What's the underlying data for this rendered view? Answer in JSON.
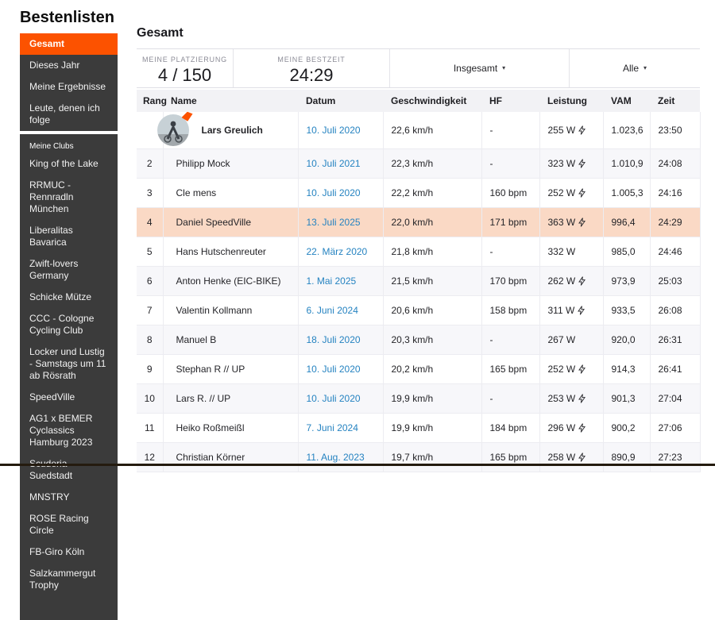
{
  "page_title": "Bestenlisten",
  "colors": {
    "accent_orange": "#fc5200",
    "sidebar_bg": "#3b3b3b",
    "link_blue": "#2583c1",
    "highlight_row": "#fad9c5",
    "zebra_row": "#f7f7fa",
    "header_row_bg": "#f2f2f5"
  },
  "sidebar": {
    "items": [
      {
        "label": "Gesamt",
        "active": true
      },
      {
        "label": "Dieses Jahr",
        "active": false
      },
      {
        "label": "Meine Ergebnisse",
        "active": false
      },
      {
        "label": "Leute, denen ich folge",
        "active": false
      }
    ],
    "clubs_header": "Meine Clubs",
    "clubs": [
      "King of the Lake",
      "RRMUC - Rennradln München",
      "Liberalitas Bavarica",
      "Zwift-lovers Germany",
      "Schicke Mütze",
      "CCC - Cologne Cycling Club",
      "Locker und Lustig - Samstags um 11 ab Rösrath",
      "SpeedVille",
      "AG1 x BEMER Cyclassics Hamburg 2023",
      "Scuderia Suedstadt",
      "MNSTRY",
      "ROSE Racing Circle",
      "FB-Giro Köln",
      "Salzkammergut Trophy"
    ]
  },
  "main": {
    "heading": "Gesamt",
    "stats": [
      {
        "label": "MEINE PLATZIERUNG",
        "value": "4 / 150"
      },
      {
        "label": "MEINE BESTZEIT",
        "value": "24:29"
      }
    ],
    "filters": [
      {
        "label": "Insgesamt",
        "caret": "▾"
      },
      {
        "label": "Alle",
        "caret": "▾"
      }
    ]
  },
  "table": {
    "columns": [
      "Rang",
      "Name",
      "Datum",
      "Geschwindigkeit",
      "HF",
      "Leistung",
      "VAM",
      "Zeit"
    ],
    "rows": [
      {
        "rank": "1",
        "has_avatar": true,
        "name": "Lars Greulich",
        "date": "10. Juli 2020",
        "speed": "22,6 km/h",
        "hf": "-",
        "power": "255 W",
        "power_meter": true,
        "vam": "1.023,6",
        "time": "23:50",
        "highlight": false
      },
      {
        "rank": "2",
        "has_avatar": false,
        "name": "Philipp Mock",
        "date": "10. Juli 2021",
        "speed": "22,3 km/h",
        "hf": "-",
        "power": "323 W",
        "power_meter": true,
        "vam": "1.010,9",
        "time": "24:08",
        "highlight": false
      },
      {
        "rank": "3",
        "has_avatar": false,
        "name": "Cle mens",
        "date": "10. Juli 2020",
        "speed": "22,2 km/h",
        "hf": "160 bpm",
        "power": "252 W",
        "power_meter": true,
        "vam": "1.005,3",
        "time": "24:16",
        "highlight": false
      },
      {
        "rank": "4",
        "has_avatar": false,
        "name": "Daniel SpeedVille",
        "date": "13. Juli 2025",
        "speed": "22,0 km/h",
        "hf": "171 bpm",
        "power": "363 W",
        "power_meter": true,
        "vam": "996,4",
        "time": "24:29",
        "highlight": true
      },
      {
        "rank": "5",
        "has_avatar": false,
        "name": "Hans Hutschenreuter",
        "date": "22. März 2020",
        "speed": "21,8 km/h",
        "hf": "-",
        "power": "332 W",
        "power_meter": false,
        "vam": "985,0",
        "time": "24:46",
        "highlight": false
      },
      {
        "rank": "6",
        "has_avatar": false,
        "name": "Anton Henke (EIC-BIKE)",
        "date": "1. Mai 2025",
        "speed": "21,5 km/h",
        "hf": "170 bpm",
        "power": "262 W",
        "power_meter": true,
        "vam": "973,9",
        "time": "25:03",
        "highlight": false
      },
      {
        "rank": "7",
        "has_avatar": false,
        "name": "Valentin Kollmann",
        "date": "6. Juni 2024",
        "speed": "20,6 km/h",
        "hf": "158 bpm",
        "power": "311 W",
        "power_meter": true,
        "vam": "933,5",
        "time": "26:08",
        "highlight": false
      },
      {
        "rank": "8",
        "has_avatar": false,
        "name": "Manuel B",
        "date": "18. Juli 2020",
        "speed": "20,3 km/h",
        "hf": "-",
        "power": "267 W",
        "power_meter": false,
        "vam": "920,0",
        "time": "26:31",
        "highlight": false
      },
      {
        "rank": "9",
        "has_avatar": false,
        "name": "Stephan R // UP",
        "date": "10. Juli 2020",
        "speed": "20,2 km/h",
        "hf": "165 bpm",
        "power": "252 W",
        "power_meter": true,
        "vam": "914,3",
        "time": "26:41",
        "highlight": false
      },
      {
        "rank": "10",
        "has_avatar": false,
        "name": "Lars R. // UP",
        "date": "10. Juli 2020",
        "speed": "19,9 km/h",
        "hf": "-",
        "power": "253 W",
        "power_meter": true,
        "vam": "901,3",
        "time": "27:04",
        "highlight": false
      },
      {
        "rank": "11",
        "has_avatar": false,
        "name": "Heiko Roßmeißl",
        "date": "7. Juni 2024",
        "speed": "19,9 km/h",
        "hf": "184 bpm",
        "power": "296 W",
        "power_meter": true,
        "vam": "900,2",
        "time": "27:06",
        "highlight": false
      },
      {
        "rank": "12",
        "has_avatar": false,
        "name": "Christian Körner",
        "date": "11. Aug. 2023",
        "speed": "19,7 km/h",
        "hf": "165 bpm",
        "power": "258 W",
        "power_meter": true,
        "vam": "890,9",
        "time": "27:23",
        "highlight": false
      }
    ]
  }
}
